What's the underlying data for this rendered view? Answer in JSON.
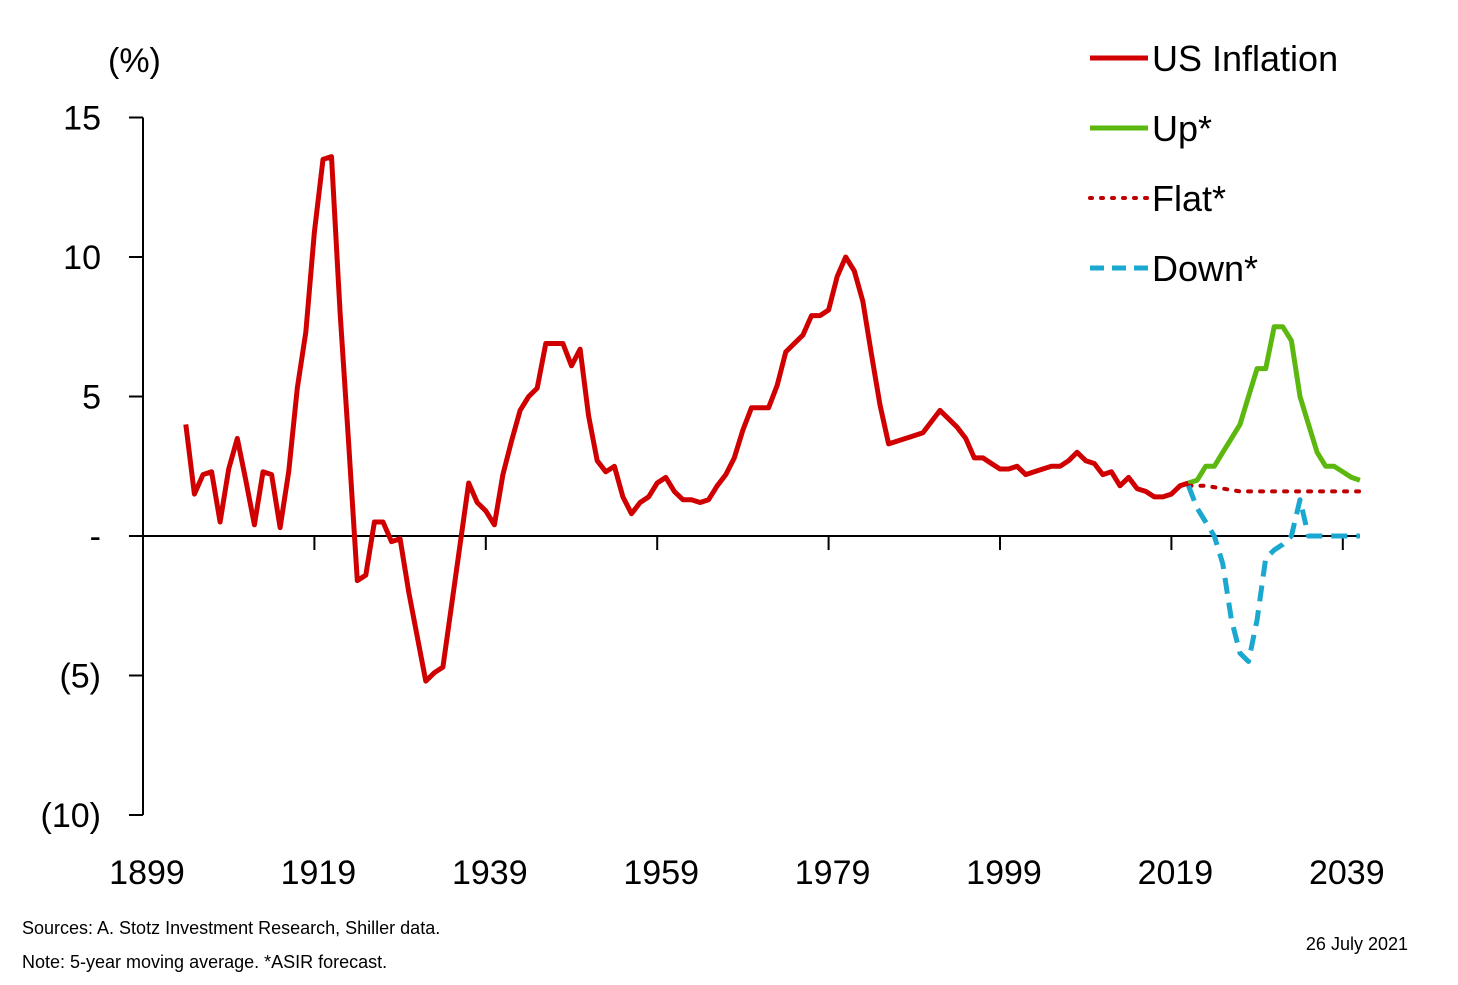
{
  "chart_data": {
    "type": "line",
    "title": "",
    "ylabel": "(%)",
    "xlabel": "",
    "xlim": [
      1899,
      2041
    ],
    "ylim": [
      -10,
      15
    ],
    "x_ticks": [
      "1899",
      "1919",
      "1939",
      "1959",
      "1979",
      "1999",
      "2019",
      "2039"
    ],
    "y_ticks": [
      {
        "value": 15,
        "label": "15"
      },
      {
        "value": 10,
        "label": "10"
      },
      {
        "value": 5,
        "label": "5"
      },
      {
        "value": 0,
        "label": "-"
      },
      {
        "value": -5,
        "label": "(5)"
      },
      {
        "value": -10,
        "label": "(10)"
      }
    ],
    "legend_position": "top-right",
    "series": [
      {
        "name": "US Inflation",
        "color": "#d00000",
        "style": "solid",
        "x": [
          1904,
          1905,
          1906,
          1907,
          1908,
          1909,
          1910,
          1911,
          1912,
          1913,
          1914,
          1915,
          1916,
          1917,
          1918,
          1919,
          1920,
          1921,
          1922,
          1923,
          1924,
          1925,
          1926,
          1927,
          1928,
          1929,
          1930,
          1931,
          1932,
          1933,
          1934,
          1935,
          1936,
          1937,
          1938,
          1939,
          1940,
          1941,
          1942,
          1943,
          1944,
          1945,
          1946,
          1947,
          1948,
          1949,
          1950,
          1951,
          1952,
          1953,
          1954,
          1955,
          1956,
          1957,
          1958,
          1959,
          1960,
          1961,
          1962,
          1963,
          1964,
          1965,
          1966,
          1967,
          1968,
          1969,
          1970,
          1971,
          1972,
          1973,
          1974,
          1975,
          1976,
          1977,
          1978,
          1979,
          1980,
          1981,
          1982,
          1983,
          1984,
          1985,
          1986,
          1987,
          1988,
          1989,
          1990,
          1991,
          1992,
          1993,
          1994,
          1995,
          1996,
          1997,
          1998,
          1999,
          2000,
          2001,
          2002,
          2003,
          2004,
          2005,
          2006,
          2007,
          2008,
          2009,
          2010,
          2011,
          2012,
          2013,
          2014,
          2015,
          2016,
          2017,
          2018,
          2019,
          2020,
          2021
        ],
        "y": [
          4.0,
          1.5,
          2.2,
          2.3,
          0.5,
          2.4,
          3.5,
          2.0,
          0.4,
          2.3,
          2.2,
          0.3,
          2.3,
          5.3,
          7.3,
          10.9,
          13.5,
          13.6,
          8.0,
          3.3,
          -1.6,
          -1.4,
          0.5,
          0.5,
          -0.2,
          -0.1,
          -2.0,
          -3.6,
          -5.2,
          -4.9,
          -4.7,
          -2.5,
          -0.3,
          1.9,
          1.2,
          0.9,
          0.4,
          2.2,
          3.4,
          4.5,
          5.0,
          5.3,
          6.9,
          6.9,
          6.9,
          6.1,
          6.7,
          4.3,
          2.7,
          2.3,
          2.5,
          1.4,
          0.8,
          1.2,
          1.4,
          1.9,
          2.1,
          1.6,
          1.3,
          1.3,
          1.2,
          1.3,
          1.8,
          2.2,
          2.8,
          3.8,
          4.6,
          4.6,
          4.6,
          5.4,
          6.6,
          6.9,
          7.2,
          7.9,
          7.9,
          8.1,
          9.3,
          10.0,
          9.5,
          8.4,
          6.5,
          4.7,
          3.3,
          3.4,
          3.5,
          3.6,
          3.7,
          4.1,
          4.5,
          4.2,
          3.9,
          3.5,
          2.8,
          2.8,
          2.6,
          2.4,
          2.4,
          2.5,
          2.2,
          2.3,
          2.4,
          2.5,
          2.5,
          2.7,
          3.0,
          2.7,
          2.6,
          2.2,
          2.3,
          1.8,
          2.1,
          1.7,
          1.6,
          1.4,
          1.4,
          1.5,
          1.8,
          1.9
        ]
      },
      {
        "name": "Up*",
        "color": "#5cb80e",
        "style": "solid",
        "x": [
          2021,
          2022,
          2023,
          2024,
          2025,
          2026,
          2027,
          2028,
          2029,
          2030,
          2031,
          2032,
          2033,
          2034,
          2035,
          2036,
          2037,
          2038,
          2039,
          2040,
          2041
        ],
        "y": [
          1.9,
          2.0,
          2.5,
          2.5,
          3.0,
          3.5,
          4.0,
          5.0,
          6.0,
          6.0,
          7.5,
          7.5,
          7.0,
          5.0,
          4.0,
          3.0,
          2.5,
          2.5,
          2.3,
          2.1,
          2.0
        ]
      },
      {
        "name": "Flat*",
        "color": "#c00000",
        "style": "dotted",
        "x": [
          2021,
          2023,
          2025,
          2027,
          2029,
          2031,
          2033,
          2035,
          2037,
          2039,
          2041
        ],
        "y": [
          1.8,
          1.8,
          1.7,
          1.6,
          1.6,
          1.6,
          1.6,
          1.6,
          1.6,
          1.6,
          1.6
        ]
      },
      {
        "name": "Down*",
        "color": "#1ba8d0",
        "style": "dashed",
        "x": [
          2021,
          2022,
          2023,
          2024,
          2025,
          2026,
          2027,
          2028,
          2029,
          2030,
          2031,
          2032,
          2033,
          2034,
          2035,
          2036,
          2037,
          2038,
          2039,
          2040,
          2041
        ],
        "y": [
          1.8,
          1.0,
          0.5,
          0.0,
          -1.0,
          -3.0,
          -4.2,
          -4.5,
          -3.0,
          -0.8,
          -0.5,
          -0.3,
          0.0,
          1.3,
          0.0,
          0.0,
          0.0,
          0.0,
          0.0,
          0.0,
          0.0
        ]
      }
    ]
  },
  "notes": {
    "sources": "Sources: A. Stotz Investment Research, Shiller data.",
    "note": "Note: 5-year moving average. *ASIR forecast.",
    "date": "26 July 2021"
  }
}
